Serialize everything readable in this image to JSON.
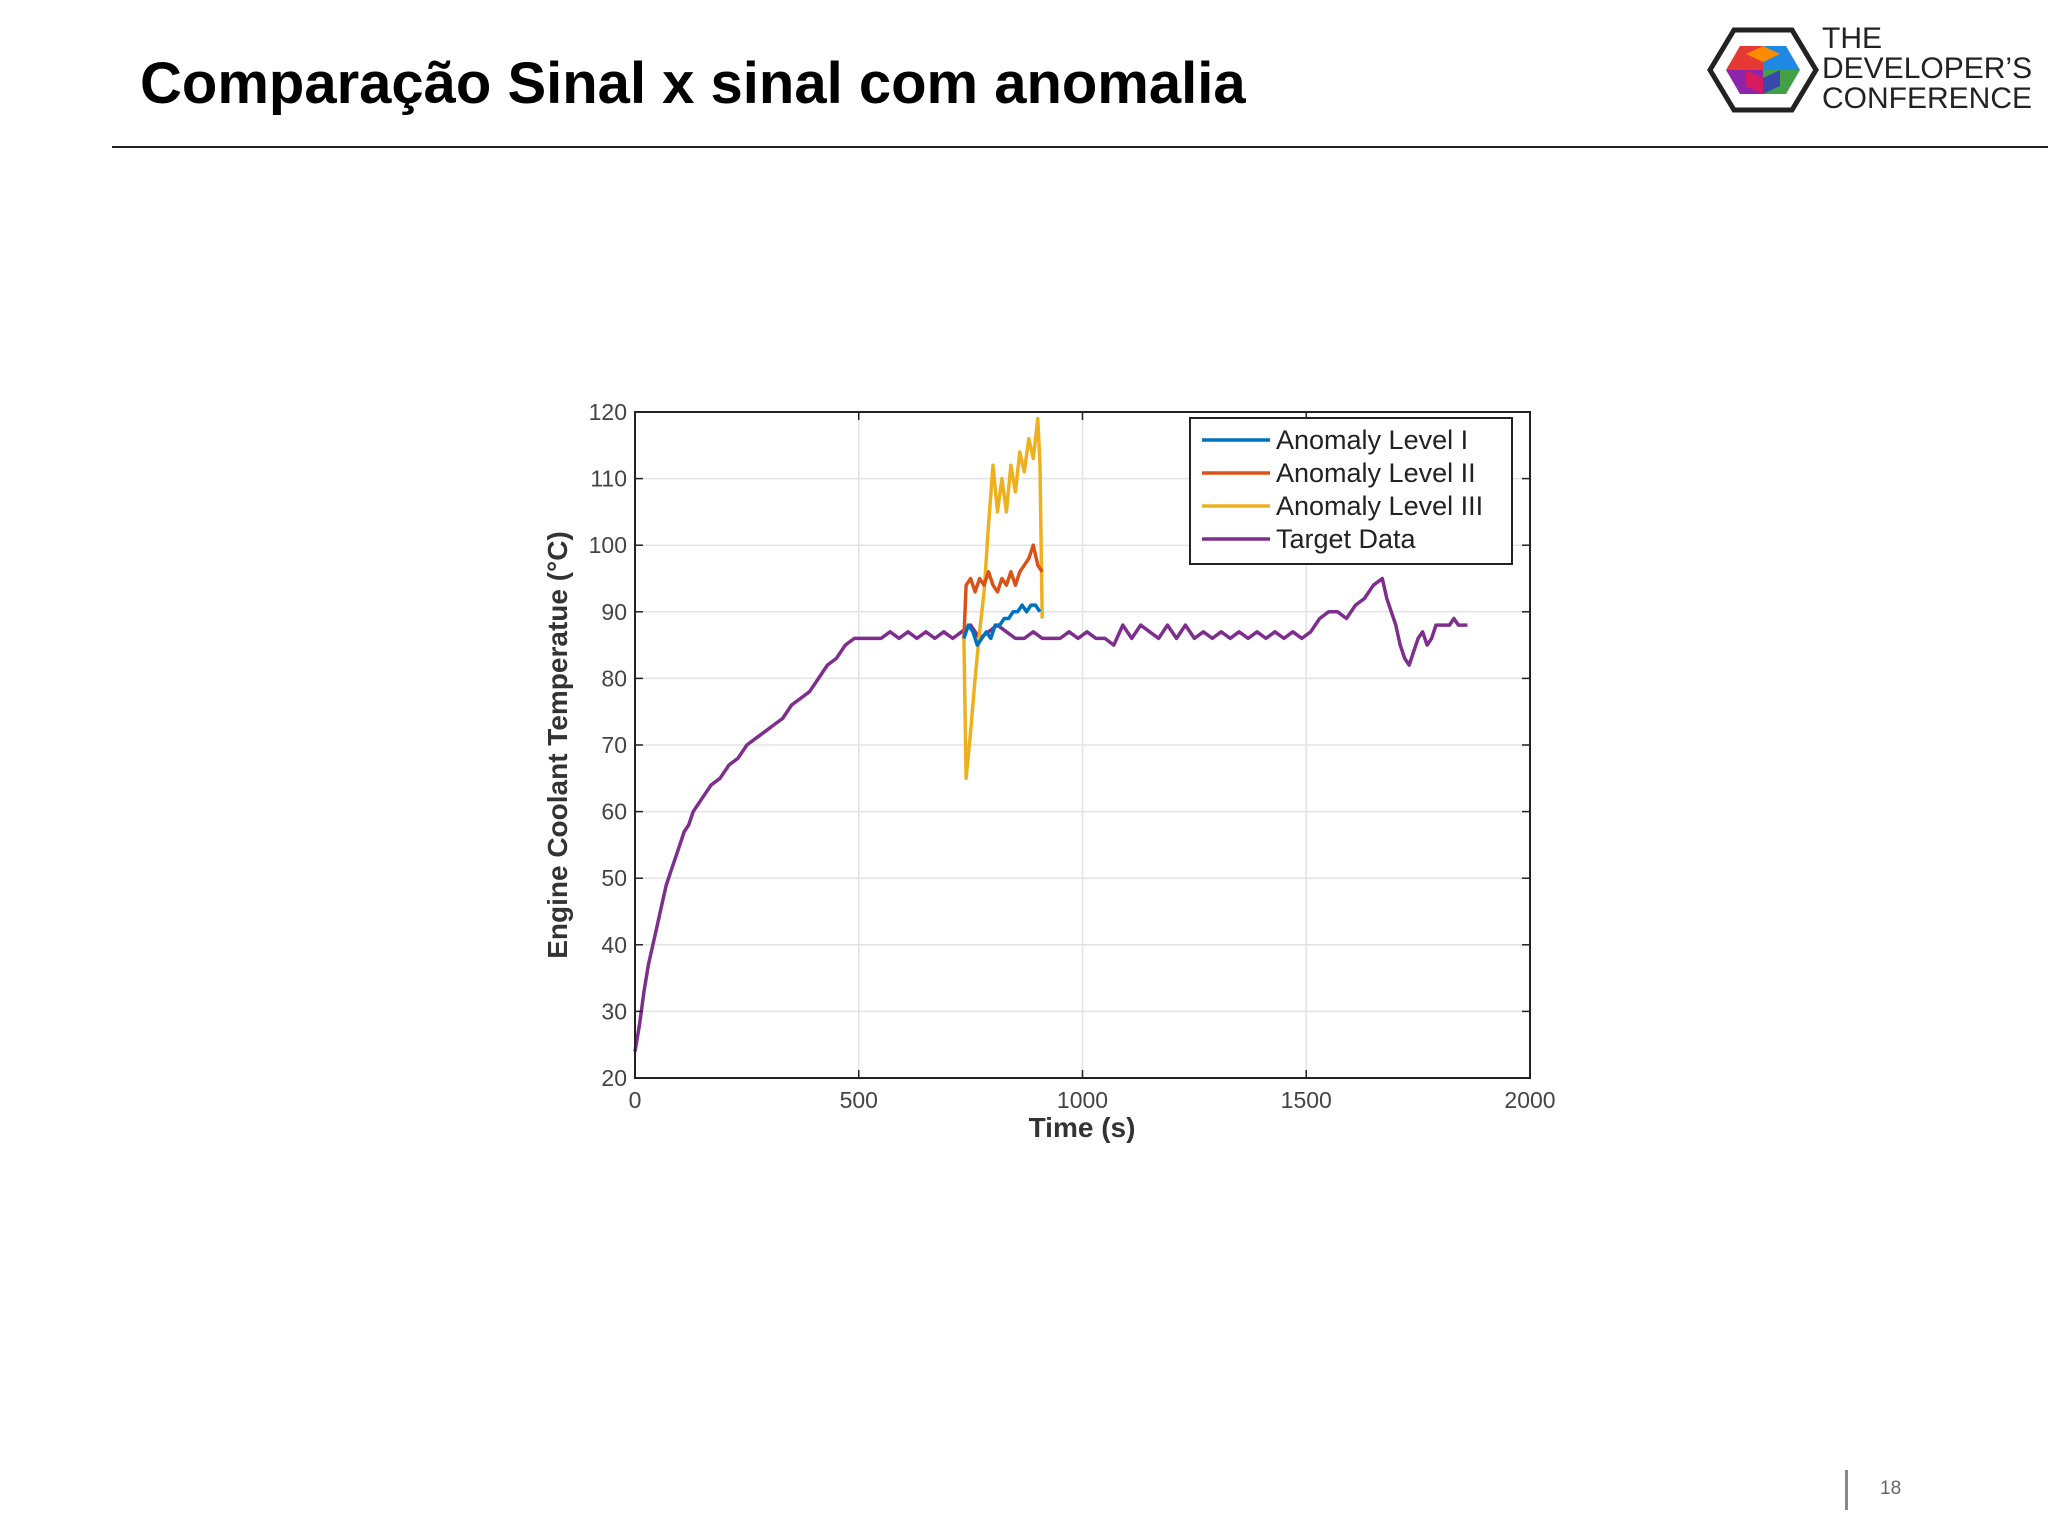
{
  "slide": {
    "title": "Comparação Sinal x sinal com anomalia",
    "page_number": "18"
  },
  "logo": {
    "line1": "THE",
    "line2": "DEVELOPER’S",
    "line3": "CONFERENCE",
    "icon": "hexagon-cube-logo"
  },
  "chart_data": {
    "type": "line",
    "title": "",
    "xlabel": "Time (s)",
    "ylabel": "Engine Coolant Temperatue (°C)",
    "xlim": [
      0,
      2000
    ],
    "ylim": [
      20,
      120
    ],
    "xticks": [
      0,
      500,
      1000,
      1500,
      2000
    ],
    "yticks": [
      20,
      30,
      40,
      50,
      60,
      70,
      80,
      90,
      100,
      110,
      120
    ],
    "grid": true,
    "legend_position": "top-right",
    "series": [
      {
        "name": "Anomaly Level I",
        "color": "#0072BD",
        "points": [
          [
            735,
            86
          ],
          [
            745,
            88
          ],
          [
            755,
            87
          ],
          [
            765,
            85
          ],
          [
            775,
            86
          ],
          [
            785,
            87
          ],
          [
            795,
            86
          ],
          [
            805,
            88
          ],
          [
            815,
            88
          ],
          [
            825,
            89
          ],
          [
            835,
            89
          ],
          [
            845,
            90
          ],
          [
            855,
            90
          ],
          [
            865,
            91
          ],
          [
            875,
            90
          ],
          [
            885,
            91
          ],
          [
            895,
            91
          ],
          [
            905,
            90
          ]
        ]
      },
      {
        "name": "Anomaly Level II",
        "color": "#D95319",
        "points": [
          [
            735,
            86
          ],
          [
            740,
            94
          ],
          [
            750,
            95
          ],
          [
            760,
            93
          ],
          [
            770,
            95
          ],
          [
            780,
            94
          ],
          [
            790,
            96
          ],
          [
            800,
            94
          ],
          [
            810,
            93
          ],
          [
            820,
            95
          ],
          [
            830,
            94
          ],
          [
            840,
            96
          ],
          [
            850,
            94
          ],
          [
            860,
            96
          ],
          [
            870,
            97
          ],
          [
            880,
            98
          ],
          [
            890,
            100
          ],
          [
            900,
            97
          ],
          [
            910,
            96
          ]
        ]
      },
      {
        "name": "Anomaly Level III",
        "color": "#EDB120",
        "points": [
          [
            735,
            86
          ],
          [
            740,
            65
          ],
          [
            750,
            72
          ],
          [
            760,
            80
          ],
          [
            770,
            87
          ],
          [
            780,
            93
          ],
          [
            790,
            103
          ],
          [
            800,
            112
          ],
          [
            810,
            105
          ],
          [
            820,
            110
          ],
          [
            830,
            105
          ],
          [
            840,
            112
          ],
          [
            850,
            108
          ],
          [
            860,
            114
          ],
          [
            870,
            111
          ],
          [
            880,
            116
          ],
          [
            890,
            113
          ],
          [
            900,
            119
          ],
          [
            905,
            112
          ],
          [
            910,
            89
          ]
        ]
      },
      {
        "name": "Target Data",
        "color": "#7E2F8E",
        "points": [
          [
            0,
            24
          ],
          [
            10,
            28
          ],
          [
            20,
            33
          ],
          [
            30,
            37
          ],
          [
            40,
            40
          ],
          [
            50,
            43
          ],
          [
            60,
            46
          ],
          [
            70,
            49
          ],
          [
            80,
            51
          ],
          [
            90,
            53
          ],
          [
            100,
            55
          ],
          [
            110,
            57
          ],
          [
            120,
            58
          ],
          [
            130,
            60
          ],
          [
            140,
            61
          ],
          [
            150,
            62
          ],
          [
            170,
            64
          ],
          [
            190,
            65
          ],
          [
            210,
            67
          ],
          [
            230,
            68
          ],
          [
            250,
            70
          ],
          [
            270,
            71
          ],
          [
            290,
            72
          ],
          [
            310,
            73
          ],
          [
            330,
            74
          ],
          [
            350,
            76
          ],
          [
            370,
            77
          ],
          [
            390,
            78
          ],
          [
            410,
            80
          ],
          [
            430,
            82
          ],
          [
            450,
            83
          ],
          [
            470,
            85
          ],
          [
            490,
            86
          ],
          [
            510,
            86
          ],
          [
            530,
            86
          ],
          [
            550,
            86
          ],
          [
            570,
            87
          ],
          [
            590,
            86
          ],
          [
            610,
            87
          ],
          [
            630,
            86
          ],
          [
            650,
            87
          ],
          [
            670,
            86
          ],
          [
            690,
            87
          ],
          [
            710,
            86
          ],
          [
            730,
            87
          ],
          [
            750,
            88
          ],
          [
            770,
            86
          ],
          [
            790,
            87
          ],
          [
            810,
            88
          ],
          [
            830,
            87
          ],
          [
            850,
            86
          ],
          [
            870,
            86
          ],
          [
            890,
            87
          ],
          [
            910,
            86
          ],
          [
            930,
            86
          ],
          [
            950,
            86
          ],
          [
            970,
            87
          ],
          [
            990,
            86
          ],
          [
            1010,
            87
          ],
          [
            1030,
            86
          ],
          [
            1050,
            86
          ],
          [
            1070,
            85
          ],
          [
            1090,
            88
          ],
          [
            1110,
            86
          ],
          [
            1130,
            88
          ],
          [
            1150,
            87
          ],
          [
            1170,
            86
          ],
          [
            1190,
            88
          ],
          [
            1210,
            86
          ],
          [
            1230,
            88
          ],
          [
            1250,
            86
          ],
          [
            1270,
            87
          ],
          [
            1290,
            86
          ],
          [
            1310,
            87
          ],
          [
            1330,
            86
          ],
          [
            1350,
            87
          ],
          [
            1370,
            86
          ],
          [
            1390,
            87
          ],
          [
            1410,
            86
          ],
          [
            1430,
            87
          ],
          [
            1450,
            86
          ],
          [
            1470,
            87
          ],
          [
            1490,
            86
          ],
          [
            1510,
            87
          ],
          [
            1530,
            89
          ],
          [
            1550,
            90
          ],
          [
            1570,
            90
          ],
          [
            1590,
            89
          ],
          [
            1610,
            91
          ],
          [
            1630,
            92
          ],
          [
            1650,
            94
          ],
          [
            1670,
            95
          ],
          [
            1680,
            92
          ],
          [
            1690,
            90
          ],
          [
            1700,
            88
          ],
          [
            1710,
            85
          ],
          [
            1720,
            83
          ],
          [
            1730,
            82
          ],
          [
            1740,
            84
          ],
          [
            1750,
            86
          ],
          [
            1760,
            87
          ],
          [
            1770,
            85
          ],
          [
            1780,
            86
          ],
          [
            1790,
            88
          ],
          [
            1800,
            88
          ],
          [
            1810,
            88
          ],
          [
            1820,
            88
          ],
          [
            1830,
            89
          ],
          [
            1840,
            88
          ],
          [
            1860,
            88
          ]
        ]
      }
    ]
  }
}
